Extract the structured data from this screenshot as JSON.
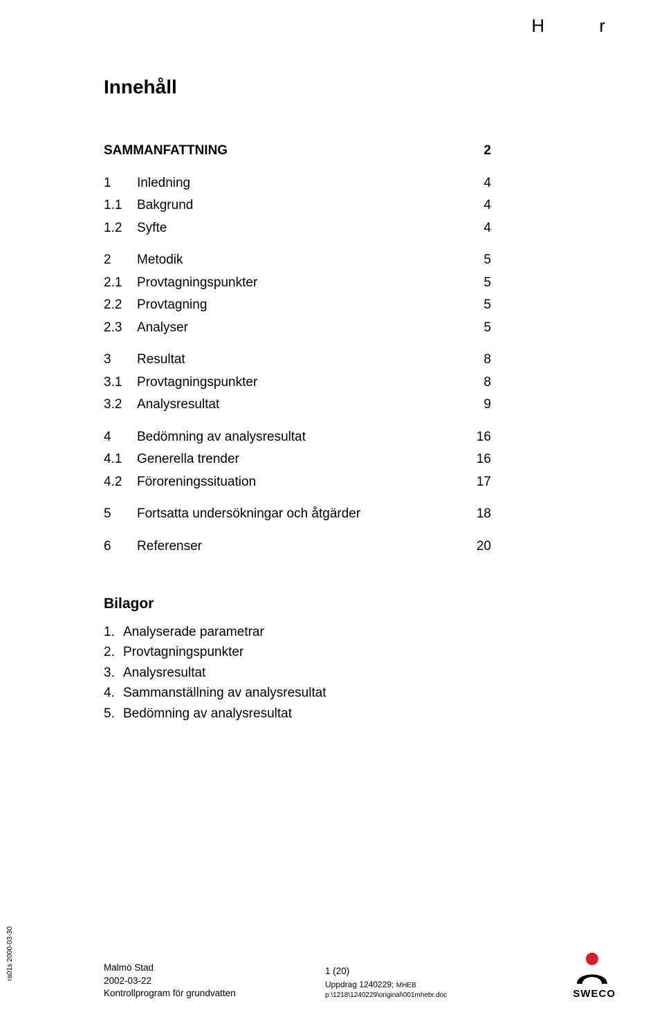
{
  "header": {
    "left": "H",
    "right": "r"
  },
  "title": "Innehåll",
  "toc": [
    {
      "num": "",
      "label": "SAMMANFATTNING",
      "page": "2",
      "bold": true,
      "gapAfter": true
    },
    {
      "num": "1",
      "label": "Inledning",
      "page": "4"
    },
    {
      "num": "1.1",
      "label": "Bakgrund",
      "page": "4"
    },
    {
      "num": "1.2",
      "label": "Syfte",
      "page": "4",
      "gapAfter": true
    },
    {
      "num": "2",
      "label": "Metodik",
      "page": "5"
    },
    {
      "num": "2.1",
      "label": "Provtagningspunkter",
      "page": "5"
    },
    {
      "num": "2.2",
      "label": "Provtagning",
      "page": "5"
    },
    {
      "num": "2.3",
      "label": "Analyser",
      "page": "5",
      "gapAfter": true
    },
    {
      "num": "3",
      "label": "Resultat",
      "page": "8"
    },
    {
      "num": "3.1",
      "label": "Provtagningspunkter",
      "page": "8"
    },
    {
      "num": "3.2",
      "label": "Analysresultat",
      "page": "9",
      "gapAfter": true
    },
    {
      "num": "4",
      "label": "Bedömning av analysresultat",
      "page": "16"
    },
    {
      "num": "4.1",
      "label": "Generella trender",
      "page": "16"
    },
    {
      "num": "4.2",
      "label": "Föroreningssituation",
      "page": "17",
      "gapAfter": true
    },
    {
      "num": "5",
      "label": "Fortsatta undersökningar och åtgärder",
      "page": "18",
      "gapAfter": true
    },
    {
      "num": "6",
      "label": "Referenser",
      "page": "20"
    }
  ],
  "bilagor": {
    "title": "Bilagor",
    "items": [
      "Analyserade parametrar",
      "Provtagningspunkter",
      "Analysresultat",
      "Sammanställning av analysresultat",
      "Bedömning av analysresultat"
    ]
  },
  "footer": {
    "sidetag": "ra01s 2000-03-30",
    "left": [
      "Malmö Stad",
      "2002-03-22",
      "Kontrollprogram för grundvatten"
    ],
    "mid_page": "1 (20)",
    "mid_uppdrag_label": "Uppdrag 1240229; ",
    "mid_uppdrag_small": "MHEB",
    "mid_path": "p:\\1218\\1240229\\original\\001mhebr.doc",
    "logo_text": "SWECO",
    "logo_red": "#d91f26",
    "logo_black": "#000000"
  }
}
